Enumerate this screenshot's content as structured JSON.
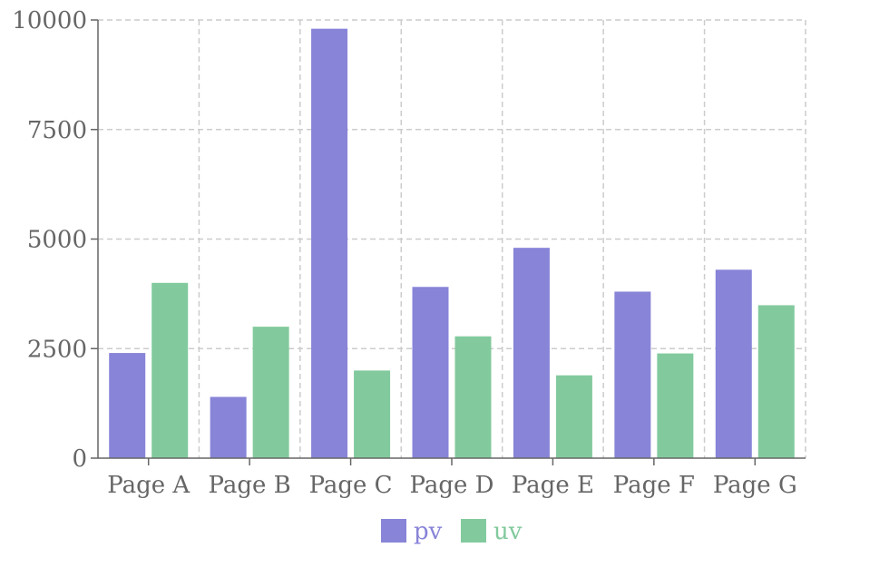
{
  "chart_data": {
    "type": "bar",
    "categories": [
      "Page A",
      "Page B",
      "Page C",
      "Page D",
      "Page E",
      "Page F",
      "Page G"
    ],
    "series": [
      {
        "name": "pv",
        "color": "#8884d8",
        "values": [
          2400,
          1398,
          9800,
          3908,
          4800,
          3800,
          4300
        ]
      },
      {
        "name": "uv",
        "color": "#82ca9d",
        "values": [
          4000,
          3000,
          2000,
          2780,
          1890,
          2390,
          3490
        ]
      }
    ],
    "title": "",
    "xlabel": "",
    "ylabel": "",
    "ylim": [
      0,
      10000
    ],
    "yticks": [
      0,
      2500,
      5000,
      7500,
      10000
    ],
    "grid": true,
    "legend_position": "bottom-center",
    "colors": {
      "grid": "#cccccc",
      "axis": "#666666",
      "text": "#666666"
    }
  }
}
